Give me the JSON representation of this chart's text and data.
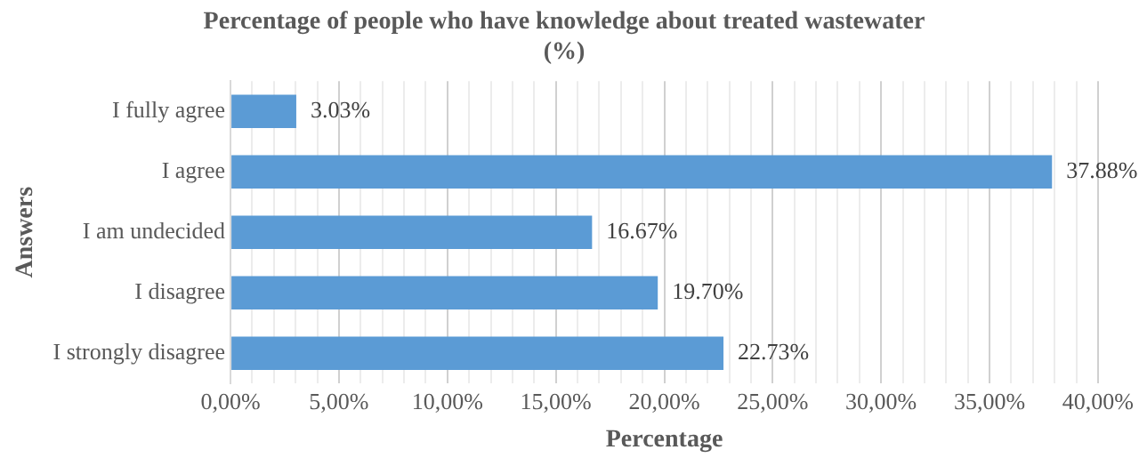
{
  "chart_data": {
    "type": "bar",
    "orientation": "horizontal",
    "title": "Percentage of people who have knowledge about treated wastewater\n(%)",
    "xlabel": "Percentage",
    "ylabel": "Answers",
    "categories": [
      "I fully agree",
      "I agree",
      "I am undecided",
      "I disagree",
      "I strongly disagree"
    ],
    "values": [
      3.03,
      37.88,
      16.67,
      19.7,
      22.73
    ],
    "value_labels": [
      "3.03%",
      "37.88%",
      "16.67%",
      "19.70%",
      "22.73%"
    ],
    "color": "#5b9bd5",
    "xlim": [
      0,
      40
    ],
    "xticks": [
      {
        "value": 0,
        "label": "0,00%"
      },
      {
        "value": 1,
        "label": null
      },
      {
        "value": 2,
        "label": null
      },
      {
        "value": 3,
        "label": null
      },
      {
        "value": 4,
        "label": null
      },
      {
        "value": 5,
        "label": "5,00%"
      },
      {
        "value": 6,
        "label": null
      },
      {
        "value": 7,
        "label": null
      },
      {
        "value": 8,
        "label": null
      },
      {
        "value": 9,
        "label": null
      },
      {
        "value": 10,
        "label": "10,00%"
      },
      {
        "value": 11,
        "label": null
      },
      {
        "value": 12,
        "label": null
      },
      {
        "value": 13,
        "label": null
      },
      {
        "value": 14,
        "label": null
      },
      {
        "value": 15,
        "label": "15,00%"
      },
      {
        "value": 16,
        "label": null
      },
      {
        "value": 17,
        "label": null
      },
      {
        "value": 18,
        "label": null
      },
      {
        "value": 19,
        "label": null
      },
      {
        "value": 20,
        "label": "20,00%"
      },
      {
        "value": 21,
        "label": null
      },
      {
        "value": 22,
        "label": null
      },
      {
        "value": 23,
        "label": null
      },
      {
        "value": 24,
        "label": null
      },
      {
        "value": 25,
        "label": "25,00%"
      },
      {
        "value": 26,
        "label": null
      },
      {
        "value": 27,
        "label": null
      },
      {
        "value": 28,
        "label": null
      },
      {
        "value": 29,
        "label": null
      },
      {
        "value": 30,
        "label": "30,00%"
      },
      {
        "value": 31,
        "label": null
      },
      {
        "value": 32,
        "label": null
      },
      {
        "value": 33,
        "label": null
      },
      {
        "value": 34,
        "label": null
      },
      {
        "value": 35,
        "label": "35,00%"
      },
      {
        "value": 36,
        "label": null
      },
      {
        "value": 37,
        "label": null
      },
      {
        "value": 38,
        "label": null
      },
      {
        "value": 39,
        "label": null
      },
      {
        "value": 40,
        "label": "40,00%"
      }
    ],
    "grid": "x"
  }
}
